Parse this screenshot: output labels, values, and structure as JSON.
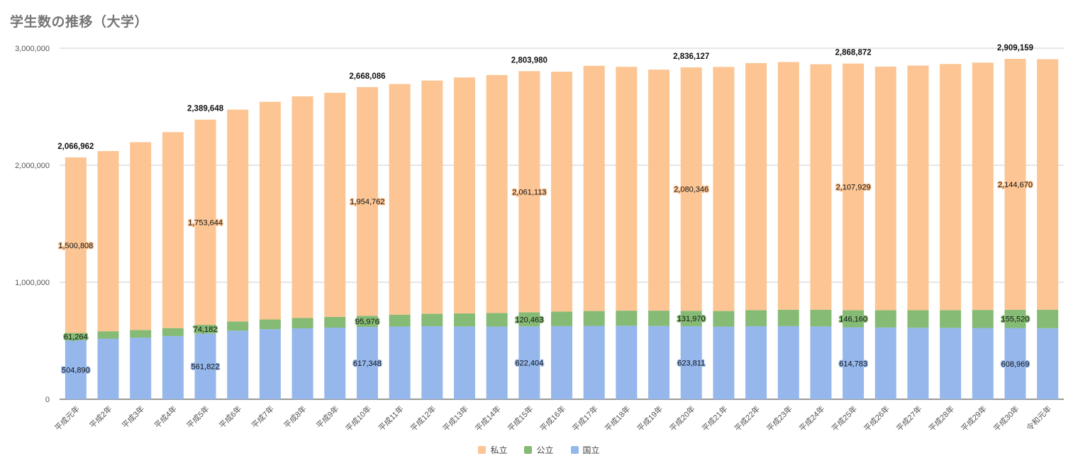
{
  "title": "学生数の推移（大学）",
  "chart_data": {
    "type": "bar",
    "stacked": true,
    "title": "学生数の推移（大学）",
    "xlabel": "",
    "ylabel": "",
    "ylim": [
      0,
      3000000
    ],
    "yticks": [
      0,
      1000000,
      2000000,
      3000000
    ],
    "ytick_labels": [
      "0",
      "1,000,000",
      "2,000,000",
      "3,000,000"
    ],
    "grid": true,
    "legend_position": "bottom",
    "categories": [
      "平成元年",
      "平成2年",
      "平成3年",
      "平成4年",
      "平成5年",
      "平成6年",
      "平成7年",
      "平成8年",
      "平成9年",
      "平成10年",
      "平成11年",
      "平成12年",
      "平成13年",
      "平成14年",
      "平成15年",
      "平成16年",
      "平成17年",
      "平成18年",
      "平成19年",
      "平成20年",
      "平成21年",
      "平成22年",
      "平成23年",
      "平成24年",
      "平成25年",
      "平成26年",
      "平成27年",
      "平成28年",
      "平成29年",
      "平成30年",
      "令和元年"
    ],
    "series": [
      {
        "name": "国立",
        "color": "#95b7ec",
        "values": [
          504890,
          518000,
          527000,
          540000,
          561822,
          586000,
          599000,
          606000,
          612000,
          617348,
          621000,
          624000,
          622000,
          621000,
          622404,
          625000,
          627000,
          628000,
          626000,
          623811,
          621000,
          624000,
          625000,
          622000,
          614783,
          613000,
          611000,
          610000,
          609000,
          608969,
          607000
        ]
      },
      {
        "name": "公立",
        "color": "#85bb74",
        "values": [
          61264,
          63000,
          65000,
          68000,
          74182,
          79000,
          83000,
          88000,
          92000,
          95976,
          102000,
          107000,
          112000,
          116000,
          120463,
          124000,
          127000,
          129000,
          131000,
          131970,
          133000,
          137000,
          140000,
          143000,
          146160,
          148000,
          150000,
          152000,
          154000,
          155520,
          158000
        ]
      },
      {
        "name": "私立",
        "color": "#fcc593",
        "values": [
          1500808,
          1540000,
          1605000,
          1675000,
          1753644,
          1810000,
          1860000,
          1895000,
          1915000,
          1954762,
          1971000,
          1993000,
          2016000,
          2034000,
          2061113,
          2050000,
          2096000,
          2084000,
          2060000,
          2080346,
          2086000,
          2112000,
          2117000,
          2098000,
          2107929,
          2082000,
          2091000,
          2103000,
          2114000,
          2144670,
          2141000
        ]
      }
    ],
    "labeled_indices": [
      0,
      4,
      9,
      14,
      19,
      24,
      29
    ],
    "label_texts": {
      "国立": [
        "504,890",
        "561,822",
        "617,348",
        "622,404",
        "623,811",
        "614,783",
        "608,969"
      ],
      "公立": [
        "61,264",
        "74,182",
        "95,976",
        "120,463",
        "131,970",
        "146,160",
        "155,520"
      ],
      "私立": [
        "1,500,808",
        "1,753,644",
        "1,954,762",
        "2,061,113",
        "2,080,346",
        "2,107,929",
        "2,144,670"
      ],
      "total": [
        "2,066,962",
        "2,389,648",
        "2,668,086",
        "2,803,980",
        "2,836,127",
        "2,868,872",
        "2,909,159"
      ]
    }
  },
  "legend": [
    {
      "label": "私立",
      "color": "#fcc593"
    },
    {
      "label": "公立",
      "color": "#85bb74"
    },
    {
      "label": "国立",
      "color": "#95b7ec"
    }
  ]
}
